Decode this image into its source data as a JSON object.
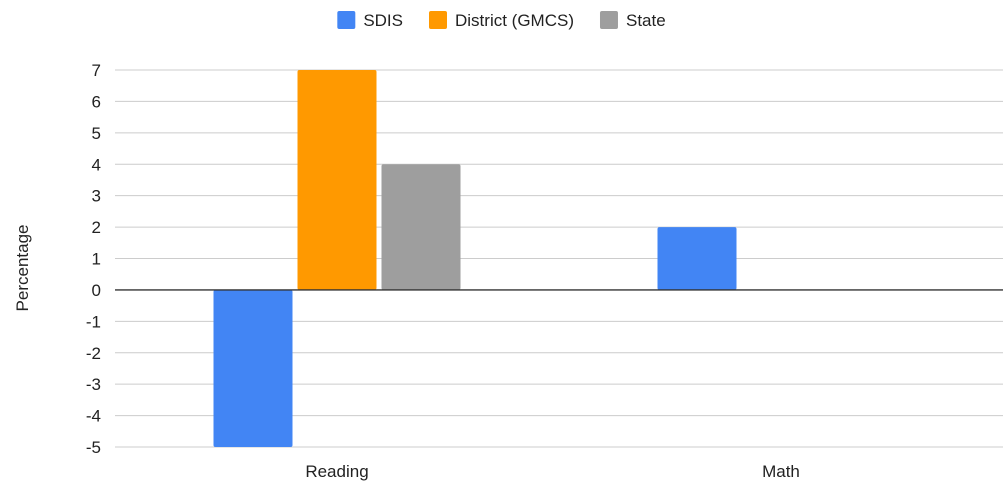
{
  "chart_data": {
    "type": "bar",
    "categories": [
      "Reading",
      "Math"
    ],
    "series": [
      {
        "name": "SDIS",
        "values": [
          -5,
          2
        ]
      },
      {
        "name": "District (GMCS)",
        "values": [
          7,
          0
        ]
      },
      {
        "name": "State",
        "values": [
          4,
          0
        ]
      }
    ],
    "title": "",
    "xlabel": "",
    "ylabel": "Percentage",
    "ylim": [
      -5,
      7
    ],
    "yticks": [
      "7",
      "6",
      "5",
      "4",
      "3",
      "2",
      "1",
      "0",
      "-1",
      "-2",
      "-3",
      "-4",
      "-5"
    ],
    "grid": true,
    "legend_position": "top-center",
    "colors": [
      "#4285f4",
      "#ff9900",
      "#9e9e9e"
    ]
  }
}
